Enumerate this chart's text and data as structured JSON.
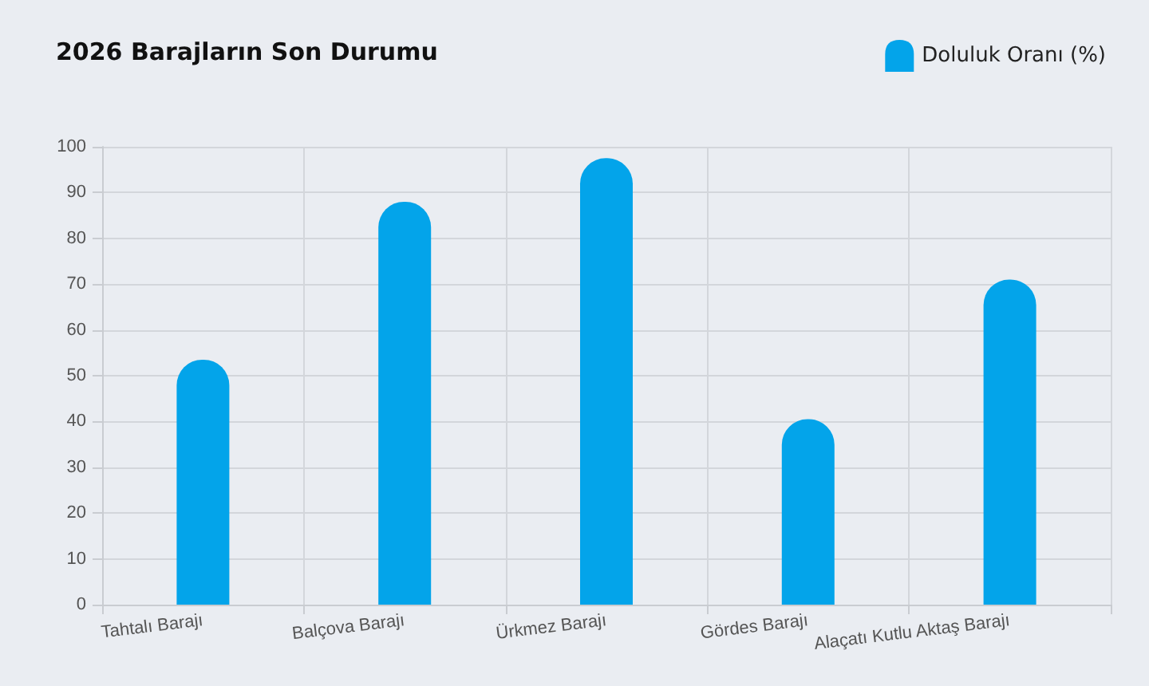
{
  "chart_data": {
    "type": "bar",
    "title": "2026 Barajların Son Durumu",
    "categories": [
      "Tahtalı Barajı",
      "Balçova Barajı",
      "Ürkmez Barajı",
      "Gördes Barajı",
      "Alaçatı Kutlu Aktaş Barajı"
    ],
    "series": [
      {
        "name": "Doluluk Oranı (%)",
        "color": "#03a4ea",
        "values": [
          53.5,
          88,
          97.5,
          40.5,
          71
        ]
      }
    ],
    "ylim": [
      0,
      100
    ],
    "yticks": [
      0,
      10,
      20,
      30,
      40,
      50,
      60,
      70,
      80,
      90,
      100
    ],
    "grid": true,
    "legend": "top right"
  }
}
